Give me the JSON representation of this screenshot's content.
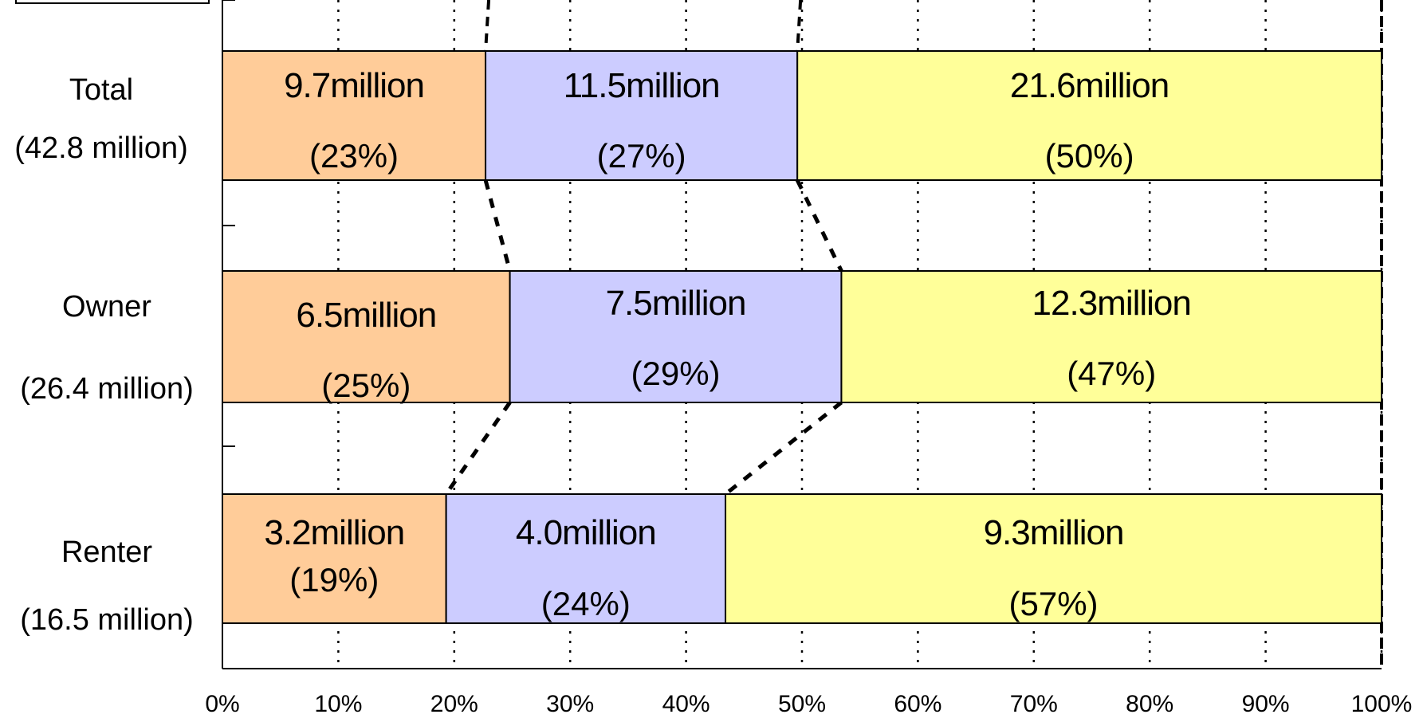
{
  "chart_data": {
    "type": "bar",
    "orientation": "horizontal",
    "stacked": true,
    "normalized": true,
    "title": "",
    "xlabel": "",
    "ylabel": "",
    "xlim": [
      0,
      100
    ],
    "x_ticks": [
      0,
      10,
      20,
      30,
      40,
      50,
      60,
      70,
      80,
      90,
      100
    ],
    "x_tick_labels": [
      "0%",
      "10%",
      "20%",
      "30%",
      "40%",
      "50%",
      "60%",
      "70%",
      "80%",
      "90%",
      "100%"
    ],
    "grid": "vertical-dotted",
    "legend": "",
    "categories": [
      {
        "label": "Total",
        "sublabel": "(42.8 million)"
      },
      {
        "label": "Owner",
        "sublabel": "(26.4 million)"
      },
      {
        "label": "Renter",
        "sublabel": "(16.5 million)"
      }
    ],
    "series": [
      {
        "color": "#FFCC99",
        "values": [
          22.7,
          24.8,
          19.3
        ],
        "labels": [
          "9.7million",
          "6.5million",
          "3.2million"
        ],
        "pct_labels": [
          "(23%)",
          "(25%)",
          "(19%)"
        ]
      },
      {
        "color": "#CCCCFF",
        "values": [
          26.9,
          28.6,
          24.1
        ],
        "labels": [
          "11.5million",
          "7.5million",
          "4.0million"
        ],
        "pct_labels": [
          "(27%)",
          "(29%)",
          "(24%)"
        ]
      },
      {
        "color": "#FFFF99",
        "values": [
          50.4,
          46.6,
          56.6
        ],
        "labels": [
          "21.6million",
          "12.3million",
          "9.3million"
        ],
        "pct_labels": [
          "(50%)",
          "(47%)",
          "(57%)"
        ]
      }
    ]
  }
}
